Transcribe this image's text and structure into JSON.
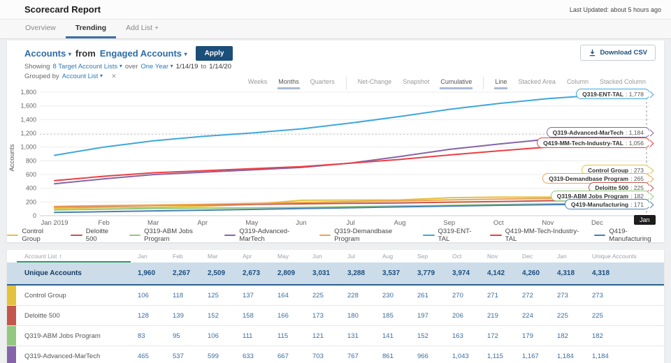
{
  "header": {
    "title": "Scorecard Report",
    "last_updated": "Last Updated: about 5 hours ago"
  },
  "tabs": [
    {
      "label": "Overview",
      "active": false
    },
    {
      "label": "Trending",
      "active": true
    },
    {
      "label": "Add List +",
      "active": false
    }
  ],
  "filter": {
    "metric": "Accounts",
    "from_word": "from",
    "source": "Engaged Accounts",
    "apply_label": "Apply",
    "download_label": "Download CSV",
    "showing": "Showing",
    "lists": "8 Target Account Lists",
    "over": "over",
    "range": "One Year",
    "date_from": "1/14/19",
    "to_word": "to",
    "date_to": "1/14/20",
    "grouped_by": "Grouped by",
    "group_value": "Account List"
  },
  "chart_controls": {
    "groups": [
      {
        "name": "interval",
        "items": [
          "Weeks",
          "Months",
          "Quarters"
        ],
        "active": "Months"
      },
      {
        "name": "mode",
        "items": [
          "Net-Change",
          "Snapshot",
          "Cumulative"
        ],
        "active": "Cumulative"
      },
      {
        "name": "style",
        "items": [
          "Line",
          "Stacked Area",
          "Column",
          "Stacked Column"
        ],
        "active": "Line"
      }
    ]
  },
  "chart_data": {
    "type": "line",
    "ylabel": "Accounts",
    "ylim": [
      0,
      1800
    ],
    "yticks": [
      "0",
      "200",
      "400",
      "600",
      "800",
      "1,000",
      "1,200",
      "1,400",
      "1,600",
      "1,800"
    ],
    "x": [
      "Jan 2019",
      "Feb",
      "Mar",
      "Apr",
      "May",
      "Jun",
      "Jul",
      "Aug",
      "Sep",
      "Oct",
      "Nov",
      "Dec",
      "Jan"
    ],
    "legend_position": "bottom-center",
    "grid": true,
    "crosshair_label": "Jan",
    "guide_value": 1184,
    "series": [
      {
        "name": "Control Group",
        "color": "#e3c23d",
        "end_label": "273",
        "values": [
          106,
          118,
          125,
          137,
          164,
          225,
          228,
          230,
          261,
          270,
          271,
          272,
          273
        ]
      },
      {
        "name": "Deloitte 500",
        "color": "#c4564b",
        "end_label": "225",
        "values": [
          128,
          139,
          152,
          158,
          166,
          173,
          180,
          185,
          197,
          206,
          219,
          224,
          225
        ]
      },
      {
        "name": "Q319-ABM Jobs Program",
        "color": "#92c87f",
        "end_label": "182",
        "values": [
          83,
          95,
          106,
          111,
          115,
          121,
          131,
          141,
          152,
          163,
          172,
          179,
          182
        ]
      },
      {
        "name": "Q319-Advanced-MarTech",
        "color": "#8565a8",
        "end_label": "1,184",
        "values": [
          465,
          537,
          599,
          633,
          667,
          703,
          767,
          861,
          966,
          1043,
          1115,
          1167,
          1184
        ]
      },
      {
        "name": "Q319-Demandbase Program",
        "color": "#f0a24f",
        "end_label": "265",
        "values": [
          135,
          146,
          156,
          166,
          178,
          192,
          204,
          216,
          230,
          242,
          252,
          260,
          265
        ]
      },
      {
        "name": "Q319-ENT-TAL",
        "color": "#3ea7dd",
        "end_label": "1,778",
        "values": [
          880,
          1000,
          1090,
          1155,
          1205,
          1265,
          1350,
          1445,
          1550,
          1635,
          1705,
          1755,
          1778
        ]
      },
      {
        "name": "Q419-MM-Tech-Industry-TAL",
        "color": "#ed3e43",
        "end_label": "1,056",
        "values": [
          510,
          575,
          625,
          655,
          685,
          715,
          765,
          820,
          885,
          945,
          1000,
          1040,
          1056
        ]
      },
      {
        "name": "Q419-Manufacturing",
        "color": "#4a7fb5",
        "end_label": "171",
        "values": [
          48,
          58,
          70,
          80,
          92,
          104,
          116,
          128,
          140,
          152,
          160,
          167,
          171
        ]
      }
    ]
  },
  "table": {
    "header": [
      "Account List",
      "Jan",
      "Feb",
      "Mar",
      "Apr",
      "May",
      "Jun",
      "Jul",
      "Aug",
      "Sep",
      "Oct",
      "Nov",
      "Dec",
      "Jan",
      "Unique Accounts"
    ],
    "unique_row": {
      "label": "Unique Accounts",
      "values": [
        "1,960",
        "2,267",
        "2,509",
        "2,673",
        "2,809",
        "3,031",
        "3,288",
        "3,537",
        "3,779",
        "3,974",
        "4,142",
        "4,260",
        "4,318",
        "4,318"
      ]
    },
    "rows": [
      {
        "label": "Control Group",
        "color": "#e3c23d",
        "values": [
          "106",
          "118",
          "125",
          "137",
          "164",
          "225",
          "228",
          "230",
          "261",
          "270",
          "271",
          "272",
          "273",
          "273"
        ]
      },
      {
        "label": "Deloitte 500",
        "color": "#c4564b",
        "values": [
          "128",
          "139",
          "152",
          "158",
          "166",
          "173",
          "180",
          "185",
          "197",
          "206",
          "219",
          "224",
          "225",
          "225"
        ]
      },
      {
        "label": "Q319-ABM Jobs Program",
        "color": "#92c87f",
        "values": [
          "83",
          "95",
          "106",
          "111",
          "115",
          "121",
          "131",
          "141",
          "152",
          "163",
          "172",
          "179",
          "182",
          "182"
        ]
      },
      {
        "label": "Q319-Advanced-MarTech",
        "color": "#8565a8",
        "values": [
          "465",
          "537",
          "599",
          "633",
          "667",
          "703",
          "767",
          "861",
          "966",
          "1,043",
          "1,115",
          "1,167",
          "1,184",
          "1,184"
        ]
      }
    ]
  }
}
